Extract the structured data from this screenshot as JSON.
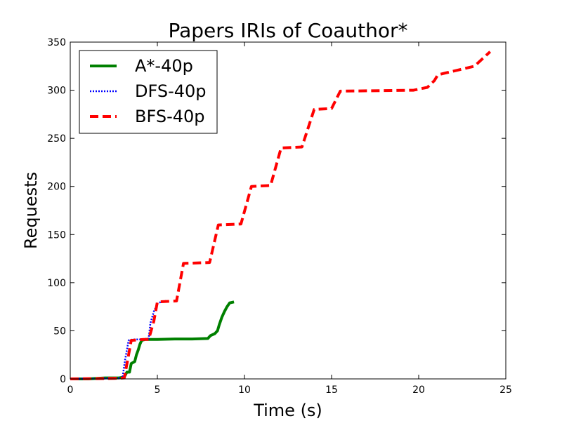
{
  "chart_data": {
    "type": "line",
    "title": "Papers IRIs of Coauthor*",
    "xlabel": "Time (s)",
    "ylabel": "Requests",
    "xlim": [
      0,
      25
    ],
    "ylim": [
      0,
      350
    ],
    "xticks": [
      "0",
      "5",
      "10",
      "15",
      "20",
      "25"
    ],
    "yticks": [
      "0",
      "50",
      "100",
      "150",
      "200",
      "250",
      "300",
      "350"
    ],
    "grid": false,
    "legend_position": "top-left",
    "series": [
      {
        "name": "A*-40p",
        "color": "#008000",
        "style": "solid",
        "points": [
          [
            0,
            0
          ],
          [
            1,
            0
          ],
          [
            2,
            1
          ],
          [
            2.8,
            1
          ],
          [
            3.1,
            2
          ],
          [
            3.25,
            7
          ],
          [
            3.4,
            7
          ],
          [
            3.5,
            16
          ],
          [
            3.7,
            18
          ],
          [
            3.8,
            25
          ],
          [
            3.9,
            30
          ],
          [
            4.0,
            36
          ],
          [
            4.1,
            40
          ],
          [
            4.3,
            41
          ],
          [
            5,
            41
          ],
          [
            6,
            41.5
          ],
          [
            7,
            41.5
          ],
          [
            7.9,
            42
          ],
          [
            8.05,
            45
          ],
          [
            8.3,
            47
          ],
          [
            8.45,
            50
          ],
          [
            8.55,
            56
          ],
          [
            8.7,
            64
          ],
          [
            8.85,
            70
          ],
          [
            9.0,
            75
          ],
          [
            9.15,
            79
          ],
          [
            9.4,
            80
          ]
        ]
      },
      {
        "name": "DFS-40p",
        "color": "#0000ff",
        "style": "dotted",
        "points": [
          [
            0,
            0
          ],
          [
            2.5,
            0.5
          ],
          [
            3.0,
            1
          ],
          [
            3.15,
            20
          ],
          [
            3.35,
            40
          ],
          [
            3.6,
            41
          ],
          [
            4.2,
            41
          ],
          [
            4.5,
            42
          ],
          [
            4.6,
            58
          ],
          [
            4.8,
            70
          ],
          [
            5.0,
            78
          ],
          [
            5.2,
            80
          ],
          [
            5.5,
            81
          ]
        ]
      },
      {
        "name": "BFS-40p",
        "color": "#ff0000",
        "style": "dashed",
        "points": [
          [
            0,
            0
          ],
          [
            2.5,
            0.5
          ],
          [
            3.1,
            1
          ],
          [
            3.3,
            20
          ],
          [
            3.5,
            40
          ],
          [
            4.2,
            41
          ],
          [
            4.5,
            41
          ],
          [
            4.8,
            60
          ],
          [
            5.0,
            80
          ],
          [
            6.1,
            81
          ],
          [
            6.5,
            120
          ],
          [
            8.0,
            121
          ],
          [
            8.5,
            160
          ],
          [
            9.8,
            161
          ],
          [
            10.4,
            200
          ],
          [
            11.5,
            201
          ],
          [
            12.1,
            240
          ],
          [
            13.3,
            241
          ],
          [
            14.0,
            280
          ],
          [
            15.0,
            281
          ],
          [
            15.5,
            299
          ],
          [
            19.7,
            300
          ],
          [
            20.5,
            303
          ],
          [
            20.9,
            310
          ],
          [
            21.1,
            316
          ],
          [
            23.2,
            325
          ],
          [
            23.8,
            335
          ],
          [
            24.1,
            340
          ]
        ]
      }
    ]
  }
}
